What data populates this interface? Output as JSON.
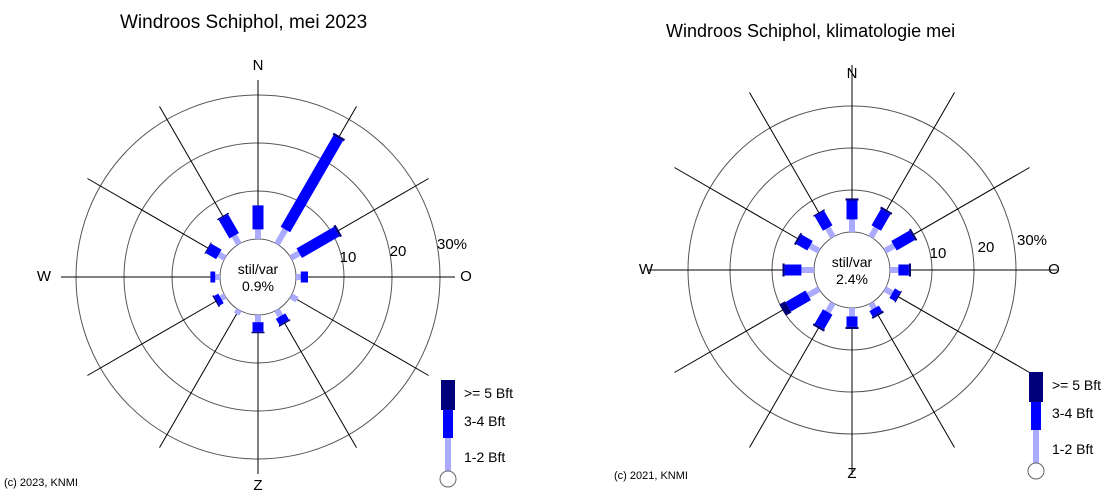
{
  "legend": {
    "items": [
      "&gt;= 5 Bft",
      "3-4 Bft",
      "1-2 Bft"
    ],
    "colors": [
      "#00007a",
      "#0000ff",
      "#aaaaff"
    ]
  },
  "chart_data": [
    {
      "type": "windrose",
      "title": "Windroos Schiphol, mei 2023",
      "copyright": "(c) 2023, KNMI",
      "directions": [
        "N",
        "W",
        "O",
        "Z"
      ],
      "sector_angles_deg": [
        0,
        30,
        60,
        90,
        120,
        150,
        180,
        210,
        240,
        270,
        300,
        330
      ],
      "rings": [
        10,
        20,
        30
      ],
      "ring_labels": [
        "10",
        "20",
        "30%"
      ],
      "calm_label": "stil/var",
      "calm_value": "0.9%",
      "series": [
        {
          "name": "1-2 Bft",
          "values": [
            2,
            3.5,
            2,
            1,
            1.5,
            1.5,
            1.5,
            1,
            1,
            1,
            1.5,
            2
          ]
        },
        {
          "name": "3-4 Bft",
          "values": [
            5,
            22,
            9,
            1.5,
            0,
            1.5,
            2,
            0,
            1,
            1,
            2.5,
            4.5
          ]
        },
        {
          "name": ">= 5 Bft",
          "values": [
            0,
            0.5,
            0.5,
            0,
            0,
            0.3,
            0.3,
            0,
            0.3,
            0,
            0.2,
            0.3
          ]
        }
      ]
    },
    {
      "type": "windrose",
      "title": "Windroos Schiphol, klimatologie mei",
      "copyright": "(c) 2021, KNMI",
      "directions": [
        "N",
        "W",
        "O",
        "Z"
      ],
      "sector_angles_deg": [
        0,
        30,
        60,
        90,
        120,
        150,
        180,
        210,
        240,
        270,
        300,
        330
      ],
      "rings": [
        10,
        20,
        30
      ],
      "ring_labels": [
        "10",
        "20",
        "30%"
      ],
      "calm_label": "stil/var",
      "calm_value": "2.4%",
      "series": [
        {
          "name": "1-2 Bft",
          "values": [
            3,
            2.5,
            2.5,
            2,
            2,
            1.5,
            2,
            2.5,
            3,
            3,
            2.5,
            2.5
          ]
        },
        {
          "name": "3-4 Bft",
          "values": [
            4.5,
            4.5,
            5,
            2.5,
            1.5,
            1.5,
            2.5,
            4,
            5.5,
            4,
            3,
            4
          ]
        },
        {
          "name": ">= 5 Bft",
          "values": [
            0.5,
            0.5,
            0.5,
            0.5,
            0.3,
            0.5,
            0.5,
            0.5,
            1.5,
            0.5,
            0.5,
            0.3
          ]
        }
      ]
    }
  ]
}
